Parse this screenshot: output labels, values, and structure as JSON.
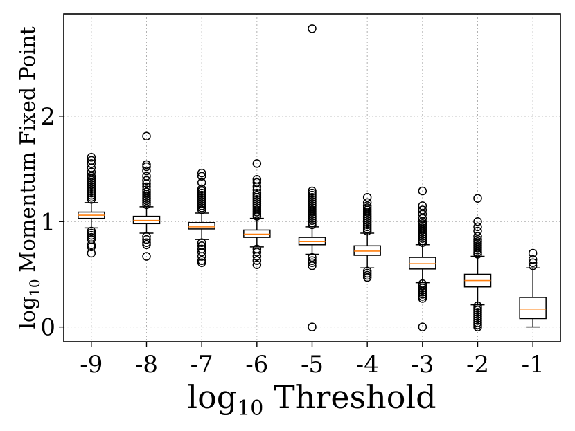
{
  "chart_data": {
    "type": "box",
    "title": "",
    "xlabel_main": "log",
    "xlabel_sub": "10",
    "xlabel_rest": " Threshold",
    "ylabel_main": "log",
    "ylabel_sub": "10",
    "ylabel_rest": " Momentum Fixed Point",
    "categories": [
      "-9",
      "-8",
      "-7",
      "-6",
      "-5",
      "-4",
      "-3",
      "-2",
      "-1"
    ],
    "yticks": [
      0,
      1,
      2
    ],
    "ylim": [
      -0.14,
      2.97
    ],
    "grid": true,
    "colors": {
      "median": "#ff7f0e",
      "box": "#000000",
      "grid": "#b0b0b0"
    },
    "boxes": [
      {
        "label": "-9",
        "whislo": 0.94,
        "q1": 1.03,
        "med": 1.06,
        "q3": 1.09,
        "whishi": 1.18,
        "fliers": [
          0.7,
          0.76,
          0.78,
          0.83,
          0.85,
          0.87,
          0.89,
          0.91,
          1.21,
          1.23,
          1.25,
          1.27,
          1.29,
          1.31,
          1.33,
          1.35,
          1.37,
          1.39,
          1.41,
          1.43,
          1.47,
          1.51,
          1.55,
          1.58,
          1.61
        ]
      },
      {
        "label": "-8",
        "whislo": 0.89,
        "q1": 0.98,
        "med": 1.01,
        "q3": 1.05,
        "whishi": 1.14,
        "fliers": [
          0.67,
          0.78,
          0.8,
          0.83,
          0.86,
          1.16,
          1.18,
          1.2,
          1.22,
          1.24,
          1.26,
          1.28,
          1.3,
          1.33,
          1.36,
          1.39,
          1.43,
          1.48,
          1.52,
          1.54,
          1.81
        ]
      },
      {
        "label": "-7",
        "whislo": 0.83,
        "q1": 0.93,
        "med": 0.95,
        "q3": 0.99,
        "whishi": 1.08,
        "fliers": [
          0.61,
          0.63,
          0.67,
          0.71,
          0.74,
          0.77,
          0.8,
          1.11,
          1.13,
          1.15,
          1.17,
          1.19,
          1.21,
          1.23,
          1.25,
          1.27,
          1.29,
          1.31,
          1.37,
          1.43,
          1.46
        ]
      },
      {
        "label": "-6",
        "whislo": 0.76,
        "q1": 0.85,
        "med": 0.88,
        "q3": 0.92,
        "whishi": 1.03,
        "fliers": [
          0.59,
          0.63,
          0.67,
          0.71,
          0.74,
          1.05,
          1.07,
          1.09,
          1.11,
          1.13,
          1.15,
          1.17,
          1.19,
          1.21,
          1.23,
          1.25,
          1.27,
          1.3,
          1.33,
          1.37,
          1.4,
          1.55
        ]
      },
      {
        "label": "-5",
        "whislo": 0.69,
        "q1": 0.78,
        "med": 0.81,
        "q3": 0.85,
        "whishi": 0.95,
        "fliers": [
          0.0,
          0.58,
          0.61,
          0.63,
          0.66,
          0.97,
          0.99,
          1.01,
          1.03,
          1.05,
          1.07,
          1.09,
          1.11,
          1.13,
          1.15,
          1.17,
          1.19,
          1.21,
          1.23,
          1.25,
          1.27,
          1.29,
          2.83
        ]
      },
      {
        "label": "-4",
        "whislo": 0.56,
        "q1": 0.68,
        "med": 0.72,
        "q3": 0.77,
        "whishi": 0.89,
        "fliers": [
          0.47,
          0.49,
          0.51,
          0.53,
          0.91,
          0.93,
          0.95,
          0.97,
          0.99,
          1.01,
          1.03,
          1.05,
          1.07,
          1.09,
          1.11,
          1.13,
          1.15,
          1.18,
          1.23
        ]
      },
      {
        "label": "-3",
        "whislo": 0.42,
        "q1": 0.55,
        "med": 0.6,
        "q3": 0.66,
        "whishi": 0.78,
        "fliers": [
          0.0,
          0.27,
          0.29,
          0.31,
          0.33,
          0.35,
          0.37,
          0.39,
          0.41,
          0.8,
          0.82,
          0.84,
          0.86,
          0.88,
          0.9,
          0.92,
          0.94,
          0.96,
          0.98,
          1.0,
          1.03,
          1.07,
          1.11,
          1.15,
          1.29
        ]
      },
      {
        "label": "-2",
        "whislo": 0.21,
        "q1": 0.38,
        "med": 0.44,
        "q3": 0.5,
        "whishi": 0.67,
        "fliers": [
          0.0,
          0.02,
          0.04,
          0.06,
          0.08,
          0.1,
          0.12,
          0.14,
          0.16,
          0.18,
          0.2,
          0.69,
          0.71,
          0.73,
          0.75,
          0.77,
          0.79,
          0.81,
          0.83,
          0.86,
          0.91,
          0.95,
          1.0,
          1.22
        ]
      },
      {
        "label": "-1",
        "whislo": 0.0,
        "q1": 0.08,
        "med": 0.17,
        "q3": 0.28,
        "whishi": 0.56,
        "fliers": [
          0.58,
          0.61,
          0.64,
          0.7
        ]
      }
    ]
  }
}
